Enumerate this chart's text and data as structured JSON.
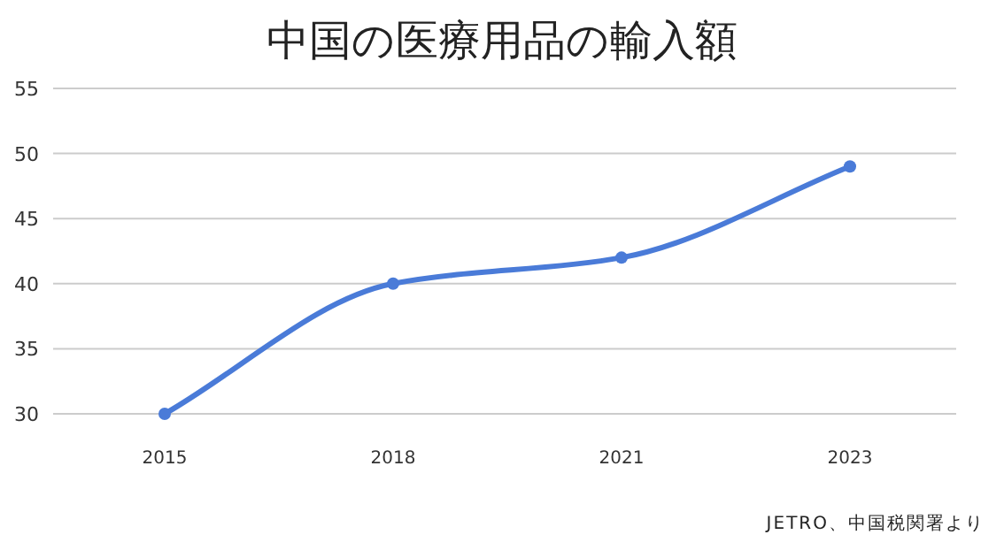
{
  "chart_data": {
    "type": "line",
    "title": "中国の医療用品の輸入額",
    "categories": [
      "2015",
      "2018",
      "2021",
      "2023"
    ],
    "series": [
      {
        "color": "#4a7bd8",
        "values": [
          30,
          40,
          42,
          49
        ]
      }
    ],
    "ylim": [
      30,
      55
    ],
    "yticks": [
      30,
      35,
      40,
      45,
      50,
      55
    ],
    "grid": "y",
    "marker": "circle",
    "line_style": "solid",
    "annotations": [
      "JETRO、中国税関署より"
    ]
  }
}
